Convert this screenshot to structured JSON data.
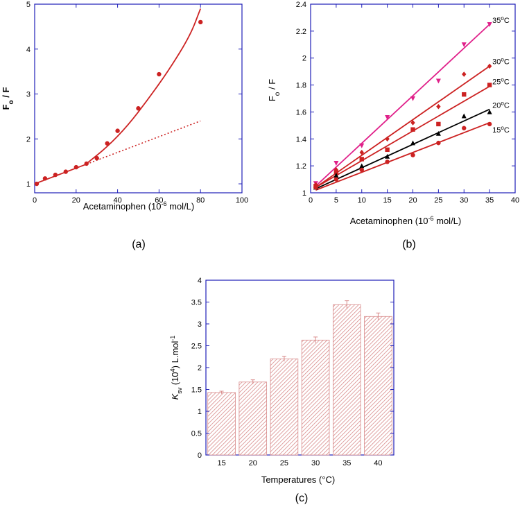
{
  "colors": {
    "frame": "#1f1fb8",
    "red": "#cc2222",
    "bar_hatch": "#d88a8a",
    "magenta": "#e0208a",
    "black": "#000000"
  },
  "chart_data": [
    {
      "id": "a",
      "type": "scatter",
      "caption": "(a)",
      "xlabel": "Acetaminophen (10",
      "xlabel_sup": "-6",
      "xlabel_tail": " mol/L)",
      "ylabel_main": "F",
      "ylabel_sub": "o",
      "ylabel_tail": " / F",
      "xlim": [
        0,
        100
      ],
      "ylim": [
        0.8,
        5
      ],
      "xticks": [
        0,
        20,
        40,
        60,
        80,
        100
      ],
      "yticks": [
        1,
        2,
        3,
        4,
        5
      ],
      "points": [
        {
          "x": 1,
          "y": 1.0
        },
        {
          "x": 5,
          "y": 1.12
        },
        {
          "x": 10,
          "y": 1.2
        },
        {
          "x": 15,
          "y": 1.27
        },
        {
          "x": 20,
          "y": 1.37
        },
        {
          "x": 25,
          "y": 1.45
        },
        {
          "x": 30,
          "y": 1.57
        },
        {
          "x": 35,
          "y": 1.9
        },
        {
          "x": 40,
          "y": 2.18
        },
        {
          "x": 50,
          "y": 2.68
        },
        {
          "x": 60,
          "y": 3.44
        },
        {
          "x": 80,
          "y": 4.6
        }
      ],
      "linear_fit": {
        "intercept": 1.0,
        "slope": 0.0175,
        "solid_to": 25,
        "dotted_to": 80
      },
      "curve_fit": {
        "points": [
          [
            25,
            1.45
          ],
          [
            35,
            1.82
          ],
          [
            45,
            2.3
          ],
          [
            55,
            2.9
          ],
          [
            65,
            3.55
          ],
          [
            75,
            4.3
          ],
          [
            80,
            4.9
          ]
        ]
      }
    },
    {
      "id": "b",
      "type": "line",
      "caption": "(b)",
      "xlabel": "Acetaminophen (10",
      "xlabel_sup": "-6",
      "xlabel_tail": " mol/L)",
      "ylabel_main": "F",
      "ylabel_sub": "o",
      "ylabel_tail": " / F",
      "xlim": [
        0,
        40
      ],
      "ylim": [
        1,
        2.4
      ],
      "xticks": [
        0,
        5,
        10,
        15,
        20,
        25,
        30,
        35,
        40
      ],
      "yticks": [
        "1",
        "1.2",
        "1.4",
        "1.6",
        "1.8",
        "2",
        "2.2",
        "2.4"
      ],
      "series": [
        {
          "name": "35°C",
          "color": "#e0208a",
          "marker": "triangle-down",
          "x": [
            1,
            5,
            10,
            15,
            20,
            25,
            30,
            35
          ],
          "y": [
            1.07,
            1.22,
            1.35,
            1.56,
            1.7,
            1.83,
            2.1,
            2.25
          ],
          "fit": [
            [
              1,
              1.05
            ],
            [
              35,
              2.25
            ]
          ]
        },
        {
          "name": "30°C",
          "color": "#cc2222",
          "marker": "diamond",
          "x": [
            1,
            5,
            10,
            15,
            20,
            25,
            30,
            35
          ],
          "y": [
            1.06,
            1.17,
            1.3,
            1.4,
            1.52,
            1.64,
            1.88,
            1.94
          ],
          "fit": [
            [
              1,
              1.04
            ],
            [
              35,
              1.94
            ]
          ]
        },
        {
          "name": "25°C",
          "color": "#cc2222",
          "marker": "square",
          "x": [
            1,
            5,
            10,
            15,
            20,
            25,
            30,
            35
          ],
          "y": [
            1.05,
            1.15,
            1.25,
            1.32,
            1.47,
            1.51,
            1.73,
            1.8
          ],
          "fit": [
            [
              1,
              1.04
            ],
            [
              35,
              1.79
            ]
          ]
        },
        {
          "name": "20°C",
          "color": "#000000",
          "marker": "triangle-up",
          "x": [
            1,
            5,
            10,
            15,
            20,
            25,
            30,
            35
          ],
          "y": [
            1.04,
            1.13,
            1.2,
            1.27,
            1.37,
            1.44,
            1.57,
            1.6
          ],
          "fit": [
            [
              1,
              1.03
            ],
            [
              35,
              1.62
            ]
          ]
        },
        {
          "name": "15°C",
          "color": "#cc2222",
          "marker": "circle",
          "x": [
            1,
            5,
            10,
            15,
            20,
            25,
            30,
            35
          ],
          "y": [
            1.04,
            1.1,
            1.17,
            1.23,
            1.28,
            1.37,
            1.48,
            1.51
          ],
          "fit": [
            [
              1,
              1.02
            ],
            [
              35,
              1.52
            ]
          ]
        }
      ]
    },
    {
      "id": "c",
      "type": "bar",
      "caption": "(c)",
      "xlabel": "Temperatures (°C)",
      "ylabel_k": "K",
      "ylabel_sv": "sv",
      "ylabel_mid": " (10",
      "ylabel_sup": "4",
      "ylabel_tail": ") L.mol",
      "ylabel_sup2": "-1",
      "categories": [
        "15",
        "20",
        "25",
        "30",
        "35",
        "40"
      ],
      "values": [
        1.43,
        1.67,
        2.2,
        2.63,
        3.44,
        3.17
      ],
      "errors": [
        0.03,
        0.05,
        0.06,
        0.07,
        0.09,
        0.08
      ],
      "ylim": [
        0,
        4
      ],
      "yticks": [
        "0",
        "0.5",
        "1",
        "1.5",
        "2",
        "2.5",
        "3",
        "3.5",
        "4"
      ]
    }
  ]
}
